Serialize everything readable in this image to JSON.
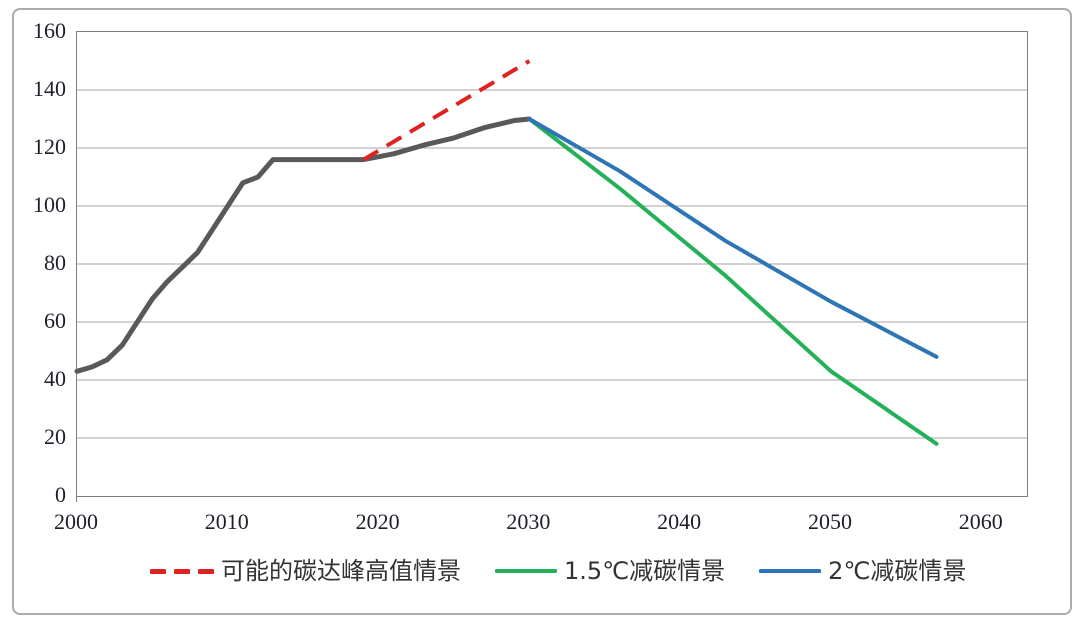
{
  "chart_data": {
    "type": "line",
    "title": "",
    "xlabel": "",
    "ylabel": "",
    "xlim": [
      2000,
      2063
    ],
    "ylim": [
      0,
      160
    ],
    "x_ticks": [
      2000,
      2010,
      2020,
      2030,
      2040,
      2050,
      2060
    ],
    "y_ticks": [
      0,
      20,
      40,
      60,
      80,
      100,
      120,
      140,
      160
    ],
    "grid": "horizontal",
    "grid_color": "#a6a6a6",
    "axis_color": "#7f7f7f",
    "tick_label_color": "#1f1f2b",
    "legend_position": "bottom",
    "series": [
      {
        "name": "historical-and-continued-emissions",
        "color": "#595959",
        "style": "solid",
        "width": 5,
        "in_legend": false,
        "points": [
          [
            2000,
            43
          ],
          [
            2001,
            44.5
          ],
          [
            2002,
            47
          ],
          [
            2003,
            52
          ],
          [
            2004,
            60
          ],
          [
            2005,
            68
          ],
          [
            2006,
            74
          ],
          [
            2007,
            79
          ],
          [
            2008,
            84
          ],
          [
            2009,
            92
          ],
          [
            2010,
            100
          ],
          [
            2011,
            108
          ],
          [
            2012,
            110
          ],
          [
            2013,
            116
          ],
          [
            2014,
            116
          ],
          [
            2019,
            116
          ],
          [
            2021,
            118
          ],
          [
            2023,
            121
          ],
          [
            2025,
            123.5
          ],
          [
            2027,
            127
          ],
          [
            2029,
            129.5
          ],
          [
            2030,
            130
          ]
        ]
      },
      {
        "name": "possible-carbon-peak-high-scenario",
        "color": "#e02221",
        "style": "dashed",
        "width": 4,
        "in_legend": true,
        "points": [
          [
            2019,
            116
          ],
          [
            2030,
            150
          ]
        ]
      },
      {
        "name": "1.5C-reduction-scenario",
        "color": "#24b158",
        "style": "solid",
        "width": 4,
        "in_legend": true,
        "points": [
          [
            2030,
            130
          ],
          [
            2036,
            106
          ],
          [
            2043,
            76
          ],
          [
            2050,
            43
          ],
          [
            2057,
            18
          ]
        ]
      },
      {
        "name": "2C-reduction-scenario",
        "color": "#2e75b6",
        "style": "solid",
        "width": 4,
        "in_legend": true,
        "points": [
          [
            2030,
            130
          ],
          [
            2036,
            112
          ],
          [
            2043,
            88
          ],
          [
            2050,
            67
          ],
          [
            2057,
            48
          ]
        ]
      }
    ],
    "legend": [
      {
        "label": "可能的碳达峰高值情景",
        "color": "#e02221",
        "style": "dashed"
      },
      {
        "label": "1.5℃减碳情景",
        "color": "#24b158",
        "style": "solid"
      },
      {
        "label": "2℃减碳情景",
        "color": "#2e75b6",
        "style": "solid"
      }
    ]
  }
}
